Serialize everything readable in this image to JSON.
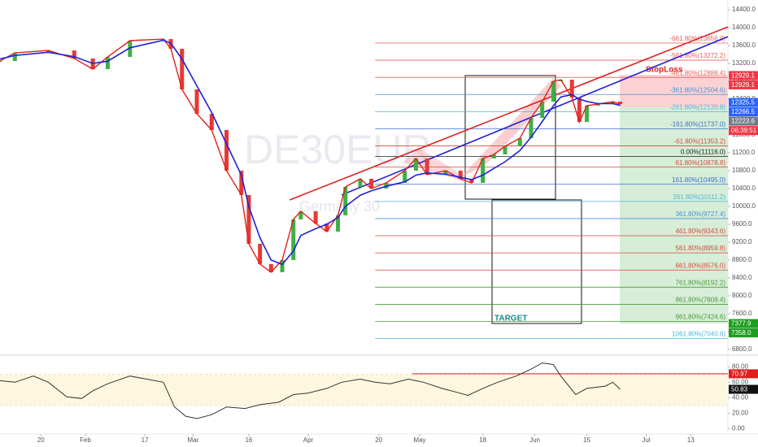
{
  "chart_data": [
    {
      "type": "candlestick",
      "xlim": [
        "01-09",
        "07-23"
      ],
      "ylim": [
        6670,
        14620
      ],
      "x": [
        "01-09",
        "01-13",
        "01-22",
        "01-29",
        "02-03",
        "02-07",
        "02-13",
        "02-22",
        "02-24",
        "02-27",
        "03-02",
        "03-06",
        "03-10",
        "03-14",
        "03-16",
        "03-19",
        "03-22",
        "03-25",
        "03-28",
        "03-30",
        "04-03",
        "04-06",
        "04-09",
        "04-11",
        "04-15",
        "04-18",
        "04-22",
        "04-27",
        "04-30",
        "05-03",
        "05-08",
        "05-12",
        "05-15",
        "05-18",
        "05-21",
        "05-24",
        "05-28",
        "05-31",
        "06-03",
        "06-06",
        "06-08",
        "06-11",
        "06-13",
        "06-15",
        "06-18",
        "06-22",
        "06-24"
      ],
      "close": [
        13255,
        13436,
        13490,
        13310,
        13073,
        13345,
        13710,
        13745,
        13527,
        12618,
        12073,
        11710,
        10800,
        10255,
        9164,
        8710,
        8527,
        8800,
        9710,
        9890,
        9618,
        9436,
        9800,
        10436,
        10618,
        10400,
        10527,
        10800,
        11073,
        10710,
        10800,
        10618,
        10527,
        11073,
        11164,
        11345,
        11527,
        11982,
        12345,
        12800,
        12836,
        12436,
        11890,
        12255,
        12290,
        12345,
        12290
      ],
      "close_color": "#e0211b",
      "up_color": "#3cb043",
      "down_color": "#e53935",
      "series": [
        {
          "color": "#1e22d6",
          "values": [
            13300,
            13380,
            13450,
            13350,
            13200,
            13250,
            13550,
            13720,
            13650,
            13300,
            12700,
            12100,
            11400,
            10700,
            10000,
            9300,
            8800,
            8700,
            9000,
            9350,
            9500,
            9600,
            9750,
            10000,
            10250,
            10350,
            10450,
            10550,
            10700,
            10750,
            10720,
            10650,
            10600,
            10700,
            10850,
            11000,
            11250,
            11550,
            11900,
            12250,
            12450,
            12500,
            12400,
            12350,
            12300,
            12300,
            12260
          ]
        }
      ],
      "yticks": [
        {
          "value": 14400,
          "label": "14400.0"
        },
        {
          "value": 14000,
          "label": "14000.0"
        },
        {
          "value": 13600,
          "label": "13600.0"
        },
        {
          "value": 13200,
          "label": "13200.0"
        },
        {
          "value": 12800,
          "label": "12800.0"
        },
        {
          "value": 12400,
          "label": "12400.0"
        },
        {
          "value": 12000,
          "label": "12000.0"
        },
        {
          "value": 11600,
          "label": "11600.0"
        },
        {
          "value": 11200,
          "label": "11200.0"
        },
        {
          "value": 10800,
          "label": "10800.0"
        },
        {
          "value": 10400,
          "label": "10400.0"
        },
        {
          "value": 10000,
          "label": "10000.0"
        },
        {
          "value": 9600,
          "label": "9600.0"
        },
        {
          "value": 9200,
          "label": "9200.0"
        },
        {
          "value": 8800,
          "label": "8800.0"
        },
        {
          "value": 8400,
          "label": "8400.0"
        },
        {
          "value": 8000,
          "label": "8000.0"
        },
        {
          "value": 7600,
          "label": "7600.0"
        },
        {
          "value": 7200,
          "label": "7200.0"
        },
        {
          "value": 6800,
          "label": "6800.0"
        }
      ],
      "fib_start": "04-19",
      "fib_levels": [
        {
          "label": "-661.80%(13656.0)",
          "value": 13656.0,
          "color": "#e8605a"
        },
        {
          "label": "-561.80%(13272.2)",
          "value": 13272.2,
          "color": "#e8605a"
        },
        {
          "label": "-461.80%(12888.4)",
          "value": 12888.4,
          "color": "#e8605a"
        },
        {
          "label": "-361.80%(12504.6)",
          "value": 12504.6,
          "color": "#4a8fd8"
        },
        {
          "label": "-261.80%(12120.8)",
          "value": 12120.8,
          "color": "#4fb6d8"
        },
        {
          "label": "-161.80%(11737.0)",
          "value": 11737.0,
          "color": "#3c6fd0"
        },
        {
          "label": "-61.80%(11353.2)",
          "value": 11353.2,
          "color": "#d84a3c"
        },
        {
          "label": "0.00%(11116.0)",
          "value": 11116.0,
          "color": "#222222"
        },
        {
          "label": "61.80%(10878.8)",
          "value": 10878.8,
          "color": "#d84a3c"
        },
        {
          "label": "161.80%(10495.0)",
          "value": 10495.0,
          "color": "#3c6fd0"
        },
        {
          "label": "261.80%(10111.2)",
          "value": 10111.2,
          "color": "#4fb6d8"
        },
        {
          "label": "361.80%(9727.4)",
          "value": 9727.4,
          "color": "#4a8fd8"
        },
        {
          "label": "461.80%(9343.6)",
          "value": 9343.6,
          "color": "#d84a3c"
        },
        {
          "label": "561.80%(8959.8)",
          "value": 8959.8,
          "color": "#d84a3c"
        },
        {
          "label": "661.80%(8576.0)",
          "value": 8576.0,
          "color": "#d84a3c"
        },
        {
          "label": "761.80%(8192.2)",
          "value": 8192.2,
          "color": "#4c9a3c"
        },
        {
          "label": "861.80%(7808.4)",
          "value": 7808.4,
          "color": "#4c9a3c"
        },
        {
          "label": "961.80%(7424.6)",
          "value": 7424.6,
          "color": "#4c9a3c"
        },
        {
          "label": "1061.80%(7040.8)",
          "value": 7040.8,
          "color": "#4fb6d8"
        }
      ],
      "trendlines": [
        {
          "color": "#e01e1e",
          "x": [
            "03-27",
            "07-23"
          ],
          "y": [
            10145,
            14018
          ]
        },
        {
          "color": "#1e22d6",
          "x": [
            "04-10",
            "07-23"
          ],
          "y": [
            10255,
            13800
          ]
        }
      ],
      "price_tags": [
        {
          "value": 12929.1,
          "color": "#f23645"
        },
        {
          "value": 12929.1,
          "color": "#f23645"
        },
        {
          "value": 12325.5,
          "color": "#2962ff"
        },
        {
          "value": 12266.5,
          "color": "#2962ff"
        },
        {
          "value": 12223.6,
          "color": "#787b86"
        },
        {
          "value": 7377.9,
          "color": "#1e9e1e"
        },
        {
          "value": 7358.0,
          "label": "7358.0",
          "color": "#1e9e1e"
        }
      ],
      "countdown": {
        "text": "06:39:51",
        "color": "#f23645"
      },
      "annotations": [
        "StopLoss",
        "TARGET"
      ],
      "watermark": [
        "DE30EUR",
        "Germany 30"
      ]
    },
    {
      "type": "line",
      "xlim": [
        "01-09",
        "07-23"
      ],
      "ylim": [
        -7,
        94
      ],
      "x": [
        "01-09",
        "01-13",
        "01-18",
        "01-22",
        "01-27",
        "01-31",
        "02-03",
        "02-07",
        "02-13",
        "02-22",
        "02-25",
        "02-28",
        "03-02",
        "03-06",
        "03-10",
        "03-15",
        "03-19",
        "03-24",
        "03-28",
        "04-01",
        "04-06",
        "04-10",
        "04-15",
        "04-19",
        "04-23",
        "04-28",
        "05-02",
        "05-07",
        "05-11",
        "05-14",
        "05-18",
        "05-22",
        "05-27",
        "05-31",
        "06-03",
        "06-06",
        "06-08",
        "06-12",
        "06-15",
        "06-20",
        "06-22",
        "06-24"
      ],
      "values": [
        62,
        60,
        68,
        60,
        41,
        39,
        49,
        58,
        68,
        60,
        28,
        16,
        13,
        18,
        28,
        26,
        31,
        34,
        44,
        46,
        52,
        60,
        64,
        60,
        58,
        64,
        60,
        52,
        47,
        43,
        52,
        60,
        68,
        77,
        85,
        83,
        68,
        44,
        52,
        55,
        60,
        50.83
      ],
      "color": "#333333",
      "band": [
        30,
        70
      ],
      "band_color": "#fdf7df",
      "level": {
        "value": 70.97,
        "start": "04-29",
        "color": "#e01e1e"
      },
      "yticks": [
        {
          "value": 80,
          "label": "80.00"
        },
        {
          "value": 60,
          "label": "60.00"
        },
        {
          "value": 40,
          "label": "40.00"
        },
        {
          "value": 20,
          "label": "20.00"
        },
        {
          "value": 0,
          "label": "0.00"
        }
      ],
      "xticks": [
        {
          "value": "01-20",
          "label": "20"
        },
        {
          "value": "02-01",
          "label": "Feb"
        },
        {
          "value": "02-17",
          "label": "17"
        },
        {
          "value": "03-01",
          "label": "Mar"
        },
        {
          "value": "03-16",
          "label": "16"
        },
        {
          "value": "04-01",
          "label": "Apr"
        },
        {
          "value": "04-20",
          "label": "20"
        },
        {
          "value": "05-01",
          "label": "May"
        },
        {
          "value": "05-18",
          "label": "18"
        },
        {
          "value": "06-01",
          "label": "Jun"
        },
        {
          "value": "06-15",
          "label": "15"
        },
        {
          "value": "07-01",
          "label": "Jul"
        },
        {
          "value": "07-13",
          "label": "13"
        }
      ]
    }
  ]
}
